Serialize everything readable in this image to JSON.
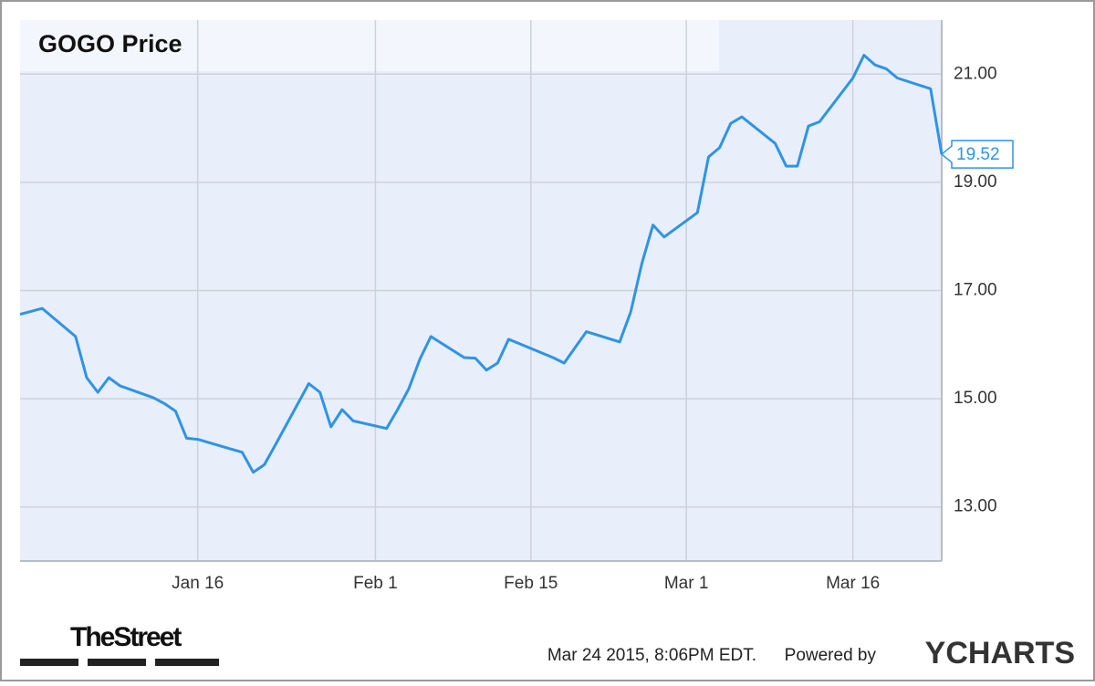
{
  "chart_data": {
    "type": "line",
    "title": "GOGO Price",
    "color": "#2f93e6",
    "x": [
      "Dec 31",
      "Jan 2",
      "Jan 5",
      "Jan 6",
      "Jan 7",
      "Jan 8",
      "Jan 9",
      "Jan 12",
      "Jan 13",
      "Jan 14",
      "Jan 15",
      "Jan 16",
      "Jan 20",
      "Jan 21",
      "Jan 22",
      "Jan 23",
      "Jan 26",
      "Jan 27",
      "Jan 28",
      "Jan 29",
      "Jan 30",
      "Feb 2",
      "Feb 3",
      "Feb 4",
      "Feb 5",
      "Feb 6",
      "Feb 9",
      "Feb 10",
      "Feb 11",
      "Feb 12",
      "Feb 13",
      "Feb 17",
      "Feb 18",
      "Feb 19",
      "Feb 20",
      "Feb 23",
      "Feb 24",
      "Feb 25",
      "Feb 26",
      "Feb 27",
      "Mar 2",
      "Mar 3",
      "Mar 4",
      "Mar 5",
      "Mar 6",
      "Mar 9",
      "Mar 10",
      "Mar 11",
      "Mar 12",
      "Mar 13",
      "Mar 16",
      "Mar 17",
      "Mar 18",
      "Mar 19",
      "Mar 20",
      "Mar 23",
      "Mar 24"
    ],
    "values": [
      16.56,
      16.67,
      16.15,
      15.39,
      15.12,
      15.39,
      15.24,
      15.02,
      14.91,
      14.77,
      14.27,
      14.25,
      14.01,
      13.64,
      13.78,
      14.15,
      15.28,
      15.12,
      14.48,
      14.8,
      14.59,
      14.45,
      14.8,
      15.18,
      15.73,
      16.15,
      15.76,
      15.75,
      15.53,
      15.66,
      16.1,
      15.76,
      15.66,
      15.95,
      16.24,
      16.05,
      16.61,
      17.5,
      18.21,
      17.99,
      18.44,
      19.47,
      19.64,
      20.09,
      20.21,
      19.72,
      19.3,
      19.3,
      20.04,
      20.12,
      20.93,
      21.35,
      21.17,
      21.1,
      20.93,
      20.73,
      19.52
    ],
    "xlim": [
      "Dec 31",
      "Mar 24"
    ],
    "xticks": [
      "Jan 16",
      "Feb 1",
      "Feb 15",
      "Mar 1",
      "Mar 16"
    ],
    "ylim": [
      12,
      22
    ],
    "yticks": [
      {
        "value": 13,
        "label": "13.00"
      },
      {
        "value": 15,
        "label": "15.00"
      },
      {
        "value": 17,
        "label": "17.00"
      },
      {
        "value": 19,
        "label": "19.00"
      },
      {
        "value": 21,
        "label": "21.00"
      }
    ],
    "grid": true,
    "timestamp": "Mar 24 2015, 8:06PM EDT.",
    "powered_by": "Powered by",
    "brand": "YCHARTS",
    "publisher": "TheStreet"
  }
}
